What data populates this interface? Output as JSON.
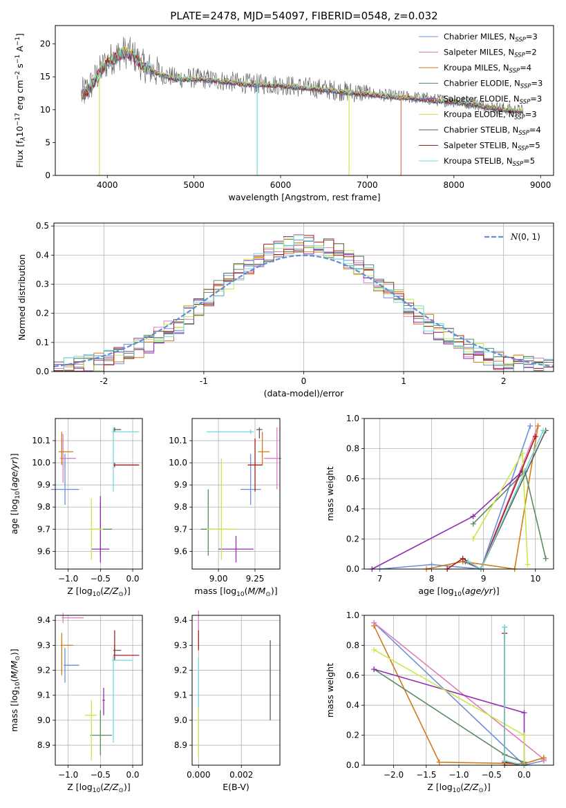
{
  "figure_title": "PLATE=2478, MJD=54097, FIBERID=0548, z=0.032",
  "colors": {
    "c1": "#6a8fd8",
    "c2": "#e07bc0",
    "c3": "#d27a14",
    "c4": "#5a8a62",
    "c5": "#8e2fb0",
    "c6": "#c8e84a",
    "c7": "#5c5c5c",
    "c8": "#a81c1c",
    "c9": "#6fd8d8",
    "normal": "#5b8fd6"
  },
  "chart_data": [
    {
      "type": "line",
      "title": "PLATE=2478, MJD=54097, FIBERID=0548, z=0.032",
      "xlabel": "wavelength [Angstrom, rest frame]",
      "ylabel": "Flux [f_λ 10^-17 erg cm^-2 s^-1 A^-1]",
      "xlim": [
        3400,
        9150
      ],
      "ylim": [
        0,
        22.8
      ],
      "xticks": [
        4000,
        5000,
        6000,
        7000,
        8000,
        9000
      ],
      "yticks": [
        0,
        5,
        10,
        15,
        20
      ],
      "legend_position": "top-right",
      "series": [
        {
          "name": "Chabrier MILES, N_SSP=3",
          "color": "#6a8fd8"
        },
        {
          "name": "Salpeter MILES, N_SSP=2",
          "color": "#e07bc0"
        },
        {
          "name": "Kroupa MILES, N_SSP=4",
          "color": "#d27a14"
        },
        {
          "name": "Chabrier ELODIE, N_SSP=3",
          "color": "#5a8a62"
        },
        {
          "name": "Salpeter ELODIE, N_SSP=3",
          "color": "#8e2fb0"
        },
        {
          "name": "Kroupa ELODIE, N_SSP=3",
          "color": "#c8e84a"
        },
        {
          "name": "Chabrier STELIB, N_SSP=4",
          "color": "#5c5c5c"
        },
        {
          "name": "Salpeter STELIB, N_SSP=5",
          "color": "#a81c1c"
        },
        {
          "name": "Kroupa STELIB, N_SSP=5",
          "color": "#6fd8d8"
        }
      ],
      "model_envelope": {
        "x": [
          3700,
          3750,
          3800,
          3850,
          3900,
          3950,
          4000,
          4100,
          4200,
          4300,
          4400,
          4600,
          4800,
          5000,
          5200,
          5400,
          5600,
          5800,
          6000,
          6200,
          6400,
          6600,
          6800,
          7000,
          7200,
          7400,
          7600,
          7800,
          8000,
          8200,
          8400,
          8600,
          8800
        ],
        "y": [
          12.2,
          12.8,
          13.5,
          14.5,
          15.5,
          16.5,
          17.3,
          18.2,
          18.8,
          18.3,
          16.8,
          15.5,
          14.8,
          14.8,
          14.6,
          14.3,
          14.0,
          13.9,
          13.8,
          13.5,
          13.3,
          13.0,
          12.7,
          12.5,
          12.2,
          12.0,
          11.8,
          11.5,
          11.3,
          11.0,
          10.5,
          10.1,
          9.8
        ]
      },
      "lines": [
        {
          "x": 3910,
          "to": 0,
          "color": "#c8e84a"
        },
        {
          "x": 5730,
          "to": 0,
          "color": "#6fd8d8"
        },
        {
          "x": 6790,
          "to": 0,
          "color": "#c8e84a"
        },
        {
          "x": 7390,
          "to": 0,
          "color": "#e07050"
        }
      ]
    },
    {
      "type": "histogram",
      "xlabel": "(data-model)/error",
      "ylabel": "Normed distribution",
      "xlim": [
        -2.5,
        2.5
      ],
      "ylim": [
        0,
        0.51
      ],
      "xticks": [
        -2,
        -1,
        0,
        1,
        2
      ],
      "yticks": [
        0.0,
        0.1,
        0.2,
        0.3,
        0.4,
        0.5
      ],
      "legend_position": "top-right",
      "legend": "N(0,1)",
      "bin_width": 0.1,
      "bin_start": -2.5,
      "reference_curve": "normal(0,1)"
    },
    {
      "type": "scatter",
      "xlabel": "Z [log10(Z/Z⊙)]",
      "ylabel": "age [log10(age/yr)]",
      "xlim": [
        -1.2,
        0.15
      ],
      "ylim": [
        9.52,
        10.2
      ],
      "xticks": [
        -1.0,
        -0.5,
        0.0
      ],
      "xticklabels": [
        "−1.0",
        "−0.5",
        "0.0"
      ],
      "yticks": [
        9.6,
        9.7,
        9.8,
        9.9,
        10.0,
        10.1
      ],
      "points": [
        {
          "color": "#6a8fd8",
          "x": -1.05,
          "xerr": [
            0.22,
            0.22
          ],
          "y": 9.88,
          "yerr": [
            0.07,
            0.16
          ]
        },
        {
          "color": "#e07bc0",
          "x": -1.08,
          "xerr": [
            0.05,
            0.2
          ],
          "y": 10.02,
          "yerr": [
            0.11,
            0.11
          ]
        },
        {
          "color": "#d27a14",
          "x": -1.1,
          "xerr": [
            0.05,
            0.18
          ],
          "y": 10.05,
          "yerr": [
            0.06,
            0.09
          ]
        },
        {
          "color": "#5a8a62",
          "x": -0.5,
          "xerr": [
            0.16,
            0.18
          ],
          "y": 9.7,
          "yerr": [
            0.12,
            0.12
          ]
        },
        {
          "color": "#8e2fb0",
          "x": -0.5,
          "xerr": [
            0.14,
            0.14
          ],
          "y": 9.61,
          "yerr": [
            0.06,
            0.24
          ]
        },
        {
          "color": "#c8e84a",
          "x": -0.64,
          "xerr": [
            0.02,
            0.18
          ],
          "y": 9.7,
          "yerr": [
            0.14,
            0.14
          ]
        },
        {
          "color": "#5c5c5c",
          "x": -0.28,
          "xerr": [
            0.02,
            0.1
          ],
          "y": 10.15,
          "yerr": [
            0.01,
            0.01
          ]
        },
        {
          "color": "#a81c1c",
          "x": -0.28,
          "xerr": [
            0.02,
            0.38
          ],
          "y": 9.99,
          "yerr": [
            0.01,
            0.01
          ]
        },
        {
          "color": "#6fd8d8",
          "x": -0.3,
          "xerr": [
            0.02,
            0.4
          ],
          "y": 10.14,
          "yerr": [
            0.27,
            0.02
          ]
        }
      ]
    },
    {
      "type": "scatter",
      "xlabel": "mass [log10(M/M⊙)]",
      "ylabel": "",
      "xlim": [
        8.82,
        9.42
      ],
      "ylim": [
        9.52,
        10.2
      ],
      "xticks": [
        9.0,
        9.25
      ],
      "xticklabels": [
        "9.00",
        "9.25"
      ],
      "yticks": [
        9.6,
        9.7,
        9.8,
        9.9,
        10.0,
        10.1
      ],
      "points": [
        {
          "color": "#6a8fd8",
          "x": 9.22,
          "xerr": [
            0.07,
            0.07
          ],
          "y": 9.88,
          "yerr": [
            0.07,
            0.16
          ]
        },
        {
          "color": "#e07bc0",
          "x": 9.4,
          "xerr": [
            0.09,
            0.03
          ],
          "y": 10.02,
          "yerr": [
            0.14,
            0.14
          ]
        },
        {
          "color": "#d27a14",
          "x": 9.3,
          "xerr": [
            0.03,
            0.05
          ],
          "y": 10.05,
          "yerr": [
            0.06,
            0.09
          ]
        },
        {
          "color": "#5a8a62",
          "x": 8.93,
          "xerr": [
            0.05,
            0.14
          ],
          "y": 9.7,
          "yerr": [
            0.12,
            0.18
          ]
        },
        {
          "color": "#8e2fb0",
          "x": 9.12,
          "xerr": [
            0.12,
            0.12
          ],
          "y": 9.61,
          "yerr": [
            0.06,
            0.06
          ]
        },
        {
          "color": "#c8e84a",
          "x": 9.02,
          "xerr": [
            0.1,
            0.1
          ],
          "y": 9.7,
          "yerr": [
            0.14,
            0.32
          ]
        },
        {
          "color": "#5c5c5c",
          "x": 9.28,
          "xerr": [
            0.02,
            0.02
          ],
          "y": 10.15,
          "yerr": [
            0.04,
            0.01
          ]
        },
        {
          "color": "#a81c1c",
          "x": 9.25,
          "xerr": [
            0.05,
            0.05
          ],
          "y": 9.99,
          "yerr": [
            0.12,
            0.12
          ]
        },
        {
          "color": "#6fd8d8",
          "x": 9.22,
          "xerr": [
            0.3,
            0.02
          ],
          "y": 10.14,
          "yerr": [
            0.01,
            0.01
          ]
        }
      ]
    },
    {
      "type": "line",
      "xlabel": "age [log10(age/yr)]",
      "ylabel": "mass weight",
      "xlim": [
        6.7,
        10.35
      ],
      "ylim": [
        0,
        1.0
      ],
      "xticks": [
        7,
        8,
        9,
        10
      ],
      "yticks": [
        0.0,
        0.2,
        0.4,
        0.6,
        0.8,
        1.0
      ],
      "series": [
        {
          "color": "#6a8fd8",
          "x": [
            7.0,
            8.0,
            8.95,
            9.9
          ],
          "y": [
            0.0,
            0.03,
            0.0,
            0.95
          ]
        },
        {
          "color": "#e07bc0",
          "x": [
            8.6,
            8.95,
            10.05
          ],
          "y": [
            0.05,
            0.0,
            0.95
          ]
        },
        {
          "color": "#d27a14",
          "x": [
            7.9,
            8.6,
            9.6,
            10.05
          ],
          "y": [
            0.0,
            0.05,
            0.0,
            0.95
          ]
        },
        {
          "color": "#5a8a62",
          "x": [
            8.8,
            9.8,
            10.2
          ],
          "y": [
            0.3,
            0.65,
            0.07
          ]
        },
        {
          "color": "#8e2fb0",
          "x": [
            6.85,
            8.8,
            9.75
          ],
          "y": [
            0.0,
            0.35,
            0.65
          ]
        },
        {
          "color": "#c8e84a",
          "x": [
            8.8,
            9.75,
            9.85
          ],
          "y": [
            0.2,
            0.77,
            0.03
          ]
        },
        {
          "color": "#5c5c5c",
          "x": [
            8.65,
            8.95,
            10.2
          ],
          "y": [
            0.05,
            0.0,
            0.92
          ]
        },
        {
          "color": "#a81c1c",
          "x": [
            8.3,
            8.6,
            8.95,
            10.0
          ],
          "y": [
            0.0,
            0.07,
            0.0,
            0.88
          ]
        },
        {
          "color": "#6fd8d8",
          "x": [
            8.7,
            8.95,
            10.15
          ],
          "y": [
            0.05,
            0.0,
            0.92
          ]
        }
      ]
    },
    {
      "type": "scatter",
      "xlabel": "Z [log10(Z/Z⊙)]",
      "ylabel": "mass [log10(M/M⊙)]",
      "xlim": [
        -1.2,
        0.15
      ],
      "ylim": [
        8.82,
        9.42
      ],
      "xticks": [
        -1.0,
        -0.5,
        0.0
      ],
      "xticklabels": [
        "−1.0",
        "−0.5",
        "0.0"
      ],
      "yticks": [
        8.9,
        9.0,
        9.1,
        9.2,
        9.3,
        9.4
      ],
      "points": [
        {
          "color": "#6a8fd8",
          "x": -1.05,
          "xerr": [
            0.02,
            0.22
          ],
          "y": 9.22,
          "yerr": [
            0.07,
            0.07
          ]
        },
        {
          "color": "#e07bc0",
          "x": -1.08,
          "xerr": [
            0.02,
            0.32
          ],
          "y": 9.41,
          "yerr": [
            0.02,
            0.02
          ]
        },
        {
          "color": "#d27a14",
          "x": -1.1,
          "xerr": [
            0.02,
            0.18
          ],
          "y": 9.3,
          "yerr": [
            0.12,
            0.05
          ]
        },
        {
          "color": "#5a8a62",
          "x": -0.5,
          "xerr": [
            0.16,
            0.18
          ],
          "y": 8.94,
          "yerr": [
            0.08,
            0.1
          ]
        },
        {
          "color": "#8e2fb0",
          "x": -0.45,
          "xerr": [
            0.02,
            0.02
          ],
          "y": 9.08,
          "yerr": [
            0.06,
            0.05
          ]
        },
        {
          "color": "#c8e84a",
          "x": -0.64,
          "xerr": [
            0.1,
            0.08
          ],
          "y": 9.02,
          "yerr": [
            0.18,
            0.06
          ]
        },
        {
          "color": "#5c5c5c",
          "x": -0.28,
          "xerr": [
            0.02,
            0.1
          ],
          "y": 9.28,
          "yerr": [
            0.02,
            0.02
          ]
        },
        {
          "color": "#a81c1c",
          "x": -0.28,
          "xerr": [
            0.02,
            0.38
          ],
          "y": 9.26,
          "yerr": [
            0.02,
            0.1
          ]
        },
        {
          "color": "#6fd8d8",
          "x": -0.3,
          "xerr": [
            0.02,
            0.3
          ],
          "y": 9.24,
          "yerr": [
            0.33,
            0.02
          ]
        }
      ]
    },
    {
      "type": "scatter",
      "xlabel": "E(B-V)",
      "ylabel": "",
      "xlim": [
        -0.0003,
        0.0038
      ],
      "ylim": [
        8.82,
        9.42
      ],
      "xticks": [
        0.0,
        0.002
      ],
      "xticklabels": [
        "0.000",
        "0.002"
      ],
      "yticks": [
        8.9,
        9.0,
        9.1,
        9.2,
        9.3,
        9.4
      ],
      "points": [
        {
          "color": "#e07bc0",
          "x": 0.0,
          "xerr": [
            0,
            0
          ],
          "y": 9.4,
          "yerr": [
            0.04,
            0.04
          ]
        },
        {
          "color": "#a81c1c",
          "x": 0.0,
          "xerr": [
            0,
            0
          ],
          "y": 9.32,
          "yerr": [
            0.04,
            0.04
          ]
        },
        {
          "color": "#5c5c5c",
          "x": 0.00335,
          "xerr": [
            0,
            0
          ],
          "y": 9.16,
          "yerr": [
            0.16,
            0.16
          ]
        },
        {
          "color": "#6fd8d8",
          "x": 0.0,
          "xerr": [
            0,
            0
          ],
          "y": 9.05,
          "yerr": [
            0.2,
            0.2
          ]
        },
        {
          "color": "#c8e84a",
          "x": 0.0,
          "xerr": [
            0,
            0
          ],
          "y": 8.95,
          "yerr": [
            0.1,
            0.1
          ]
        }
      ]
    },
    {
      "type": "line",
      "xlabel": "Z [log10(Z/Z⊙)]",
      "ylabel": "mass weight",
      "xlim": [
        -2.45,
        0.45
      ],
      "ylim": [
        0,
        1.0
      ],
      "xticks": [
        -2.0,
        -1.5,
        -1.0,
        -0.5,
        0.0
      ],
      "xticklabels": [
        "−2.0",
        "−1.5",
        "−1.0",
        "−0.5",
        "0.0"
      ],
      "yticks": [
        0.0,
        0.2,
        0.4,
        0.6,
        0.8,
        1.0
      ],
      "series": [
        {
          "color": "#6a8fd8",
          "x": [
            -2.3,
            0.0,
            0.3
          ],
          "y": [
            0.95,
            0.0,
            0.03
          ]
        },
        {
          "color": "#e07bc0",
          "x": [
            -2.3,
            0.3,
            0.3
          ],
          "y": [
            0.95,
            0.04,
            0.03
          ]
        },
        {
          "color": "#d27a14",
          "x": [
            -2.3,
            -1.3,
            0.0,
            0.3
          ],
          "y": [
            0.93,
            0.02,
            0.01,
            0.05
          ]
        },
        {
          "color": "#5a8a62",
          "x": [
            -2.3,
            -0.3,
            0.0
          ],
          "y": [
            0.64,
            0.07,
            0.02
          ]
        },
        {
          "color": "#8e2fb0",
          "x": [
            -2.3,
            0.0,
            0.0
          ],
          "y": [
            0.64,
            0.35,
            0.0
          ]
        },
        {
          "color": "#c8e84a",
          "x": [
            -2.3,
            0.0,
            0.0
          ],
          "y": [
            0.77,
            0.2,
            0.0
          ]
        },
        {
          "color": "#5c5c5c",
          "x": [
            -0.3,
            -0.3,
            0.0
          ],
          "y": [
            0.92,
            0.0,
            0.0
          ]
        },
        {
          "color": "#a81c1c",
          "x": [
            -0.3,
            -0.3,
            0.0
          ],
          "y": [
            0.88,
            0.02,
            0.0
          ]
        },
        {
          "color": "#6fd8d8",
          "x": [
            -0.3,
            -0.3,
            0.0
          ],
          "y": [
            0.92,
            0.03,
            0.0
          ]
        }
      ]
    }
  ]
}
